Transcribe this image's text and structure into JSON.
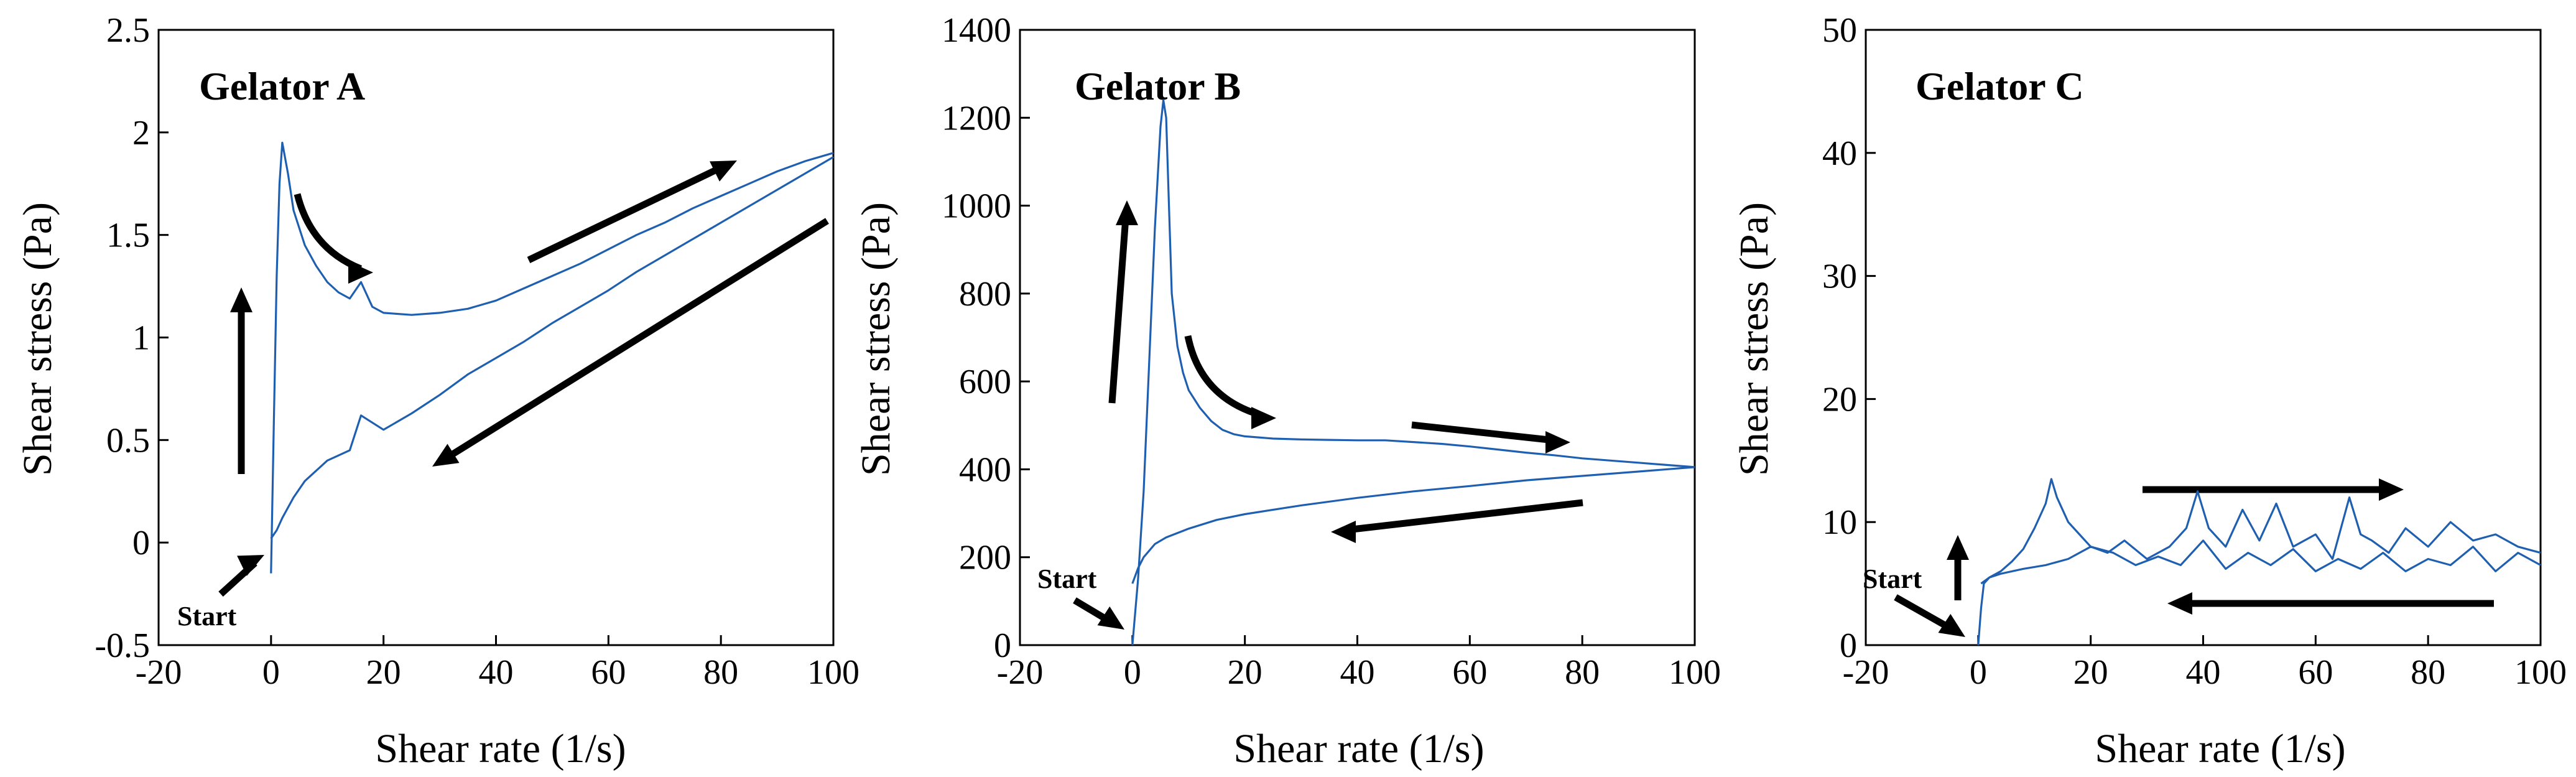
{
  "colors": {
    "curve": "#1f5fb0",
    "axis": "#000000",
    "arrow": "#000000"
  },
  "chart_data": [
    {
      "type": "line",
      "title": "Gelator A",
      "xlabel": "Shear rate (1/s)",
      "ylabel": "Shear stress (Pa)",
      "xlim": [
        -20,
        100
      ],
      "ylim": [
        -0.5,
        2.5
      ],
      "xticks": [
        -20,
        0,
        20,
        40,
        60,
        80,
        100
      ],
      "yticks": [
        -0.5,
        0,
        0.5,
        1,
        1.5,
        2,
        2.5
      ],
      "ytick_labels": [
        "-0.5",
        "0",
        "0.5",
        "1",
        "1.5",
        "2",
        "2.5"
      ],
      "annotations": [
        "Start"
      ],
      "series": [
        {
          "name": "up sweep",
          "x": [
            0,
            0.5,
            1,
            1.5,
            2,
            3,
            4,
            6,
            8,
            10,
            12,
            14,
            16,
            18,
            20,
            25,
            30,
            35,
            40,
            45,
            50,
            55,
            60,
            65,
            70,
            75,
            80,
            85,
            90,
            95,
            100
          ],
          "y": [
            -0.15,
            0.6,
            1.3,
            1.75,
            1.95,
            1.8,
            1.62,
            1.45,
            1.35,
            1.27,
            1.22,
            1.19,
            1.27,
            1.15,
            1.12,
            1.11,
            1.12,
            1.14,
            1.18,
            1.24,
            1.3,
            1.36,
            1.43,
            1.5,
            1.56,
            1.63,
            1.69,
            1.75,
            1.81,
            1.86,
            1.9
          ]
        },
        {
          "name": "down sweep",
          "x": [
            100,
            95,
            90,
            85,
            80,
            75,
            70,
            65,
            60,
            55,
            50,
            45,
            40,
            35,
            30,
            25,
            20,
            16,
            14,
            10,
            6,
            4,
            2,
            1,
            0
          ],
          "y": [
            1.88,
            1.8,
            1.72,
            1.64,
            1.56,
            1.48,
            1.4,
            1.32,
            1.23,
            1.15,
            1.07,
            0.98,
            0.9,
            0.82,
            0.72,
            0.63,
            0.55,
            0.62,
            0.45,
            0.4,
            0.3,
            0.22,
            0.12,
            0.06,
            0.02
          ]
        }
      ]
    },
    {
      "type": "line",
      "title": "Gelator B",
      "xlabel": "Shear rate (1/s)",
      "ylabel": "Shear stress (Pa)",
      "xlim": [
        -20,
        100
      ],
      "ylim": [
        0,
        1400
      ],
      "xticks": [
        -20,
        0,
        20,
        40,
        60,
        80,
        100
      ],
      "yticks": [
        0,
        200,
        400,
        600,
        800,
        1000,
        1200,
        1400
      ],
      "ytick_labels": [
        "0",
        "200",
        "400",
        "600",
        "800",
        "1000",
        "1200",
        "1400"
      ],
      "annotations": [
        "Start"
      ],
      "series": [
        {
          "name": "up sweep",
          "x": [
            0,
            1,
            2,
            3,
            4,
            5,
            5.5,
            6,
            6.5,
            7,
            8,
            9,
            10,
            12,
            14,
            16,
            18,
            20,
            25,
            30,
            35,
            40,
            45,
            50,
            55,
            60,
            65,
            70,
            75,
            80,
            85,
            90,
            95,
            100
          ],
          "y": [
            0,
            150,
            350,
            650,
            950,
            1180,
            1240,
            1200,
            1000,
            800,
            680,
            620,
            580,
            540,
            510,
            490,
            480,
            475,
            470,
            468,
            467,
            466,
            466,
            462,
            458,
            452,
            445,
            438,
            432,
            425,
            420,
            415,
            410,
            405
          ]
        },
        {
          "name": "down sweep",
          "x": [
            100,
            90,
            80,
            70,
            60,
            50,
            40,
            30,
            20,
            15,
            10,
            6,
            4,
            2,
            1,
            0
          ],
          "y": [
            405,
            395,
            385,
            375,
            362,
            350,
            335,
            318,
            298,
            285,
            265,
            245,
            230,
            200,
            175,
            140
          ]
        }
      ]
    },
    {
      "type": "line",
      "title": "Gelator C",
      "xlabel": "Shear rate (1/s)",
      "ylabel": "Shear stress (Pa)",
      "xlim": [
        -20,
        100
      ],
      "ylim": [
        0,
        50
      ],
      "xticks": [
        -20,
        0,
        20,
        40,
        60,
        80,
        100
      ],
      "yticks": [
        0,
        10,
        20,
        30,
        40,
        50
      ],
      "ytick_labels": [
        "0",
        "10",
        "20",
        "30",
        "40",
        "50"
      ],
      "annotations": [
        "Start"
      ],
      "series": [
        {
          "name": "up sweep",
          "x": [
            0,
            0.5,
            1,
            2,
            4,
            6,
            8,
            10,
            12,
            13,
            14,
            16,
            18,
            20,
            23,
            26,
            30,
            34,
            37,
            39,
            41,
            44,
            47,
            50,
            53,
            56,
            60,
            63,
            66,
            68,
            70,
            73,
            76,
            80,
            84,
            88,
            92,
            96,
            100
          ],
          "y": [
            0,
            3,
            5,
            5.5,
            6,
            6.8,
            7.8,
            9.5,
            11.5,
            13.5,
            12,
            10,
            9,
            8,
            7.5,
            8.5,
            7,
            8,
            9.5,
            12.5,
            9.5,
            8,
            11,
            8.5,
            11.5,
            8,
            9,
            7,
            12,
            9,
            8.5,
            7.5,
            9.5,
            8,
            10,
            8.5,
            9,
            8,
            7.5
          ]
        },
        {
          "name": "down sweep",
          "x": [
            100,
            96,
            92,
            88,
            84,
            80,
            76,
            72,
            68,
            64,
            60,
            56,
            52,
            48,
            44,
            40,
            36,
            32,
            28,
            24,
            20,
            16,
            12,
            8,
            4,
            2,
            0.5
          ],
          "y": [
            6.5,
            7.5,
            6,
            8,
            6.5,
            7,
            6,
            7.5,
            6.2,
            7,
            6,
            7.8,
            6.5,
            7.5,
            6.2,
            8.5,
            6.5,
            7.2,
            6.5,
            7.5,
            8,
            7,
            6.5,
            6.2,
            5.8,
            5.5,
            5
          ]
        }
      ]
    }
  ]
}
